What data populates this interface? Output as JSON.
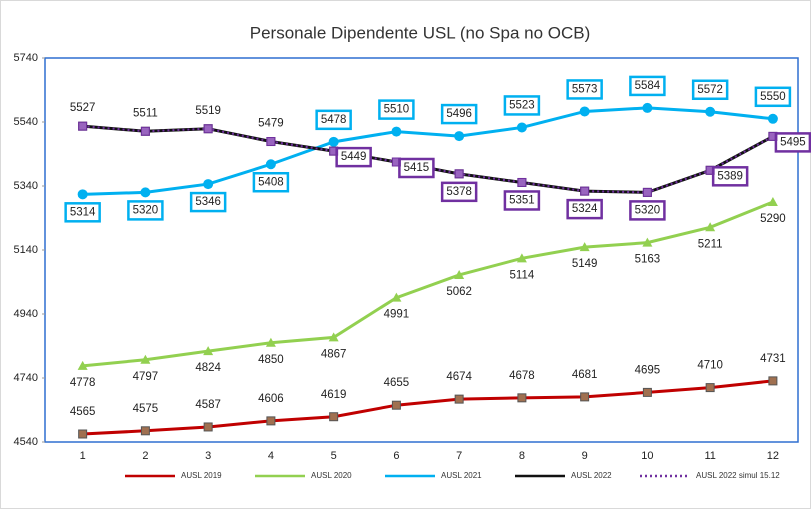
{
  "chart_data": {
    "type": "line",
    "title": "Personale Dipendente USL (no Spa no OCB)",
    "x": [
      1,
      2,
      3,
      4,
      5,
      6,
      7,
      8,
      9,
      10,
      11,
      12
    ],
    "xlim": [
      0.4,
      12.4
    ],
    "ylim": [
      4540,
      5740
    ],
    "yticks": [
      4540,
      4740,
      4940,
      5140,
      5340,
      5540,
      5740
    ],
    "series": [
      {
        "name": "AUSL 2019",
        "color": "#c00000",
        "marker": "square",
        "values": [
          4565,
          4575,
          4587,
          4606,
          4619,
          4655,
          4674,
          4678,
          4681,
          4695,
          4710,
          4731
        ]
      },
      {
        "name": "AUSL 2020",
        "color": "#92d050",
        "marker": "triangle",
        "values": [
          4778,
          4797,
          4824,
          4850,
          4867,
          4991,
          5062,
          5114,
          5149,
          5163,
          5211,
          5290
        ]
      },
      {
        "name": "AUSL 2021",
        "color": "#00b0f0",
        "marker": "circle",
        "values": [
          5314,
          5320,
          5346,
          5408,
          5478,
          5510,
          5496,
          5523,
          5573,
          5584,
          5572,
          5550
        ]
      },
      {
        "name": "AUSL 2022",
        "color": "#111111",
        "marker": "square",
        "values": [
          5527,
          5511,
          5519,
          5479,
          5449,
          5415,
          5378,
          5351,
          5324,
          5320,
          5389,
          5495
        ]
      },
      {
        "name": "AUSL 2022 simul 15.12",
        "color": "#7030a0",
        "marker": "square",
        "dotted": true,
        "values": [
          5527,
          5511,
          5519,
          5479,
          5449,
          5415,
          5378,
          5351,
          5324,
          5320,
          5389,
          5495
        ]
      }
    ]
  }
}
